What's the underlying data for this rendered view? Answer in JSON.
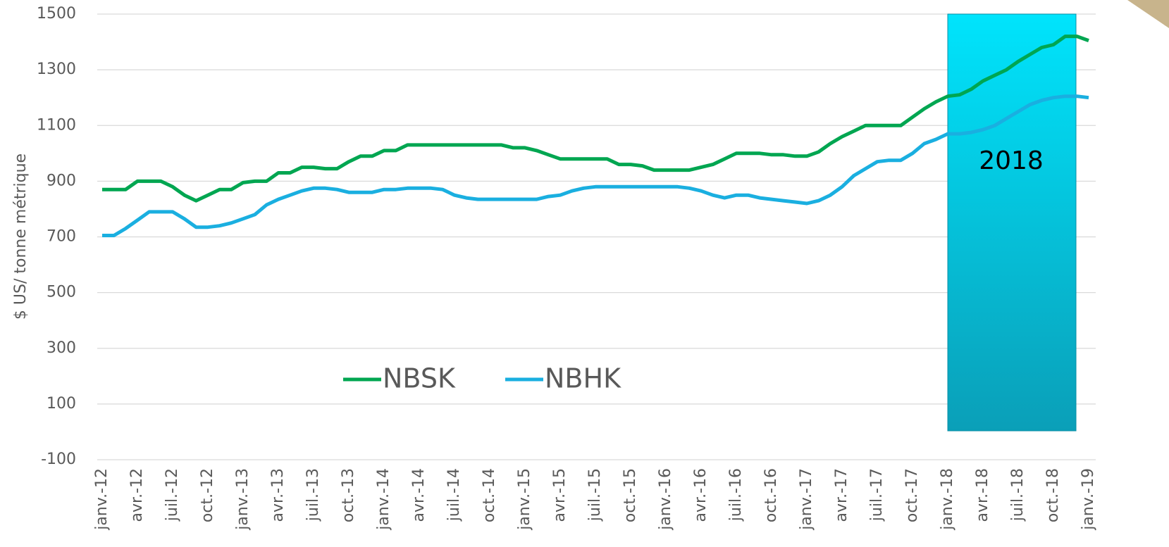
{
  "chart_data": {
    "type": "line",
    "y_label": "$ US/ tonne métrique",
    "annotation": "2018",
    "categories": [
      "janv.-12",
      null,
      null,
      "avr.-12",
      null,
      null,
      "juil.-12",
      null,
      null,
      "oct.-12",
      null,
      null,
      "janv.-13",
      null,
      null,
      "avr.-13",
      null,
      null,
      "juil.-13",
      null,
      null,
      "oct.-13",
      null,
      null,
      "janv.-14",
      null,
      null,
      "avr.-14",
      null,
      null,
      "juil.-14",
      null,
      null,
      "oct.-14",
      null,
      null,
      "janv.-15",
      null,
      null,
      "avr.-15",
      null,
      null,
      "juil.-15",
      null,
      null,
      "oct.-15",
      null,
      null,
      "janv.-16",
      null,
      null,
      "avr.-16",
      null,
      null,
      "juil.-16",
      null,
      null,
      "oct.-16",
      null,
      null,
      "janv.-17",
      null,
      null,
      "avr.-17",
      null,
      null,
      "juil.-17",
      null,
      null,
      "oct.-17",
      null,
      null,
      "janv.-18",
      null,
      null,
      "avr.-18",
      null,
      null,
      "juil.-18",
      null,
      null,
      "oct.-18",
      null,
      null,
      "janv.-19"
    ],
    "series": [
      {
        "name": "NBSK",
        "color": "#00a651",
        "values": [
          870,
          870,
          870,
          900,
          900,
          900,
          880,
          850,
          830,
          850,
          870,
          870,
          895,
          900,
          900,
          930,
          930,
          950,
          950,
          945,
          945,
          970,
          990,
          990,
          1010,
          1010,
          1030,
          1030,
          1030,
          1030,
          1030,
          1030,
          1030,
          1030,
          1030,
          1020,
          1020,
          1010,
          995,
          980,
          980,
          980,
          980,
          980,
          960,
          960,
          955,
          940,
          940,
          940,
          940,
          950,
          960,
          980,
          1000,
          1000,
          1000,
          995,
          995,
          990,
          990,
          1005,
          1035,
          1060,
          1080,
          1100,
          1100,
          1100,
          1100,
          1130,
          1160,
          1185,
          1205,
          1210,
          1230,
          1260,
          1280,
          1300,
          1330,
          1355,
          1380,
          1390,
          1420,
          1420,
          1405
        ]
      },
      {
        "name": "NBHK",
        "color": "#1aafe0",
        "values": [
          705,
          705,
          730,
          760,
          790,
          790,
          790,
          765,
          735,
          735,
          740,
          750,
          765,
          780,
          815,
          835,
          850,
          865,
          875,
          875,
          870,
          860,
          860,
          860,
          870,
          870,
          875,
          875,
          875,
          870,
          850,
          840,
          835,
          835,
          835,
          835,
          835,
          835,
          845,
          850,
          865,
          875,
          880,
          880,
          880,
          880,
          880,
          880,
          880,
          880,
          875,
          865,
          850,
          840,
          850,
          850,
          840,
          835,
          830,
          825,
          820,
          830,
          850,
          880,
          920,
          945,
          970,
          975,
          975,
          1000,
          1035,
          1050,
          1070,
          1070,
          1075,
          1085,
          1100,
          1125,
          1150,
          1175,
          1190,
          1200,
          1205,
          1205,
          1200
        ]
      }
    ],
    "ylim": [
      -100,
      1500
    ],
    "yticks": [
      -100,
      100,
      300,
      500,
      700,
      900,
      1100,
      1300,
      1500
    ],
    "grid": true
  }
}
